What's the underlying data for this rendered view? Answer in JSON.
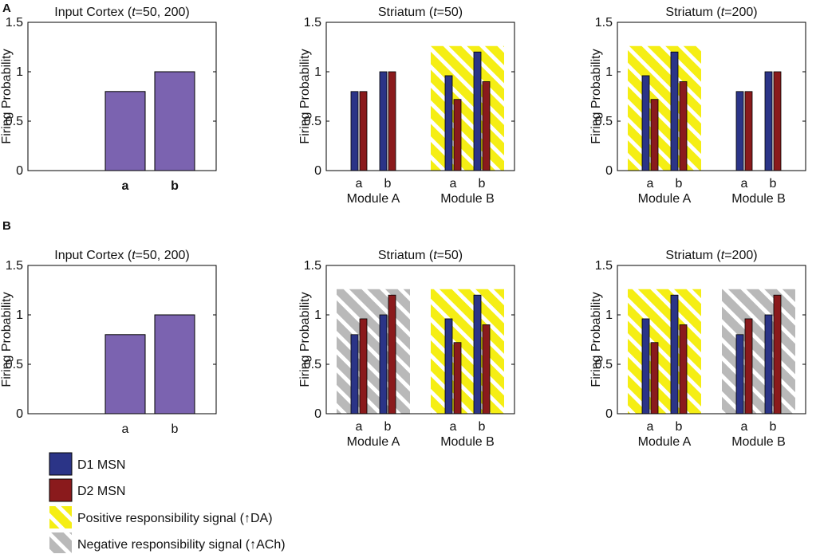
{
  "figure": {
    "panel_labels": [
      "A",
      "B"
    ],
    "legend": {
      "items": [
        {
          "label": "D1 MSN",
          "swatch": "d1"
        },
        {
          "label": "D2 MSN",
          "swatch": "d2"
        },
        {
          "label": "Positive responsibility signal (↑DA)",
          "swatch": "pos"
        },
        {
          "label": "Negative responsibility signal (↑ACh)",
          "swatch": "neg"
        }
      ]
    }
  },
  "colors": {
    "cortex": "#7b63b0",
    "d1": "#2b3487",
    "d2": "#8a1a1c",
    "positive": "#f5ee14",
    "negative": "#b9b9b9",
    "axis": "#000000"
  },
  "chart_data": [
    {
      "panel": "A",
      "type": "bar",
      "kind": "cortex",
      "title": "Input Cortex (t=50, 200)",
      "ylabel": "Firing Probability",
      "ylim": [
        0,
        1.5
      ],
      "yticks": [
        "0",
        "0.5",
        "1",
        "1.5"
      ],
      "categories": [
        "a",
        "b"
      ],
      "values": [
        0.8,
        1.0
      ]
    },
    {
      "panel": "A",
      "type": "bar",
      "kind": "striatum",
      "title": "Striatum (t=50)",
      "ylabel": "Firing Probability",
      "ylim": [
        0,
        1.5
      ],
      "yticks": [
        "0",
        "0.5",
        "1",
        "1.5"
      ],
      "modules": [
        {
          "name": "Module A",
          "categories": [
            "a",
            "b"
          ],
          "d1": [
            0.8,
            1.0
          ],
          "d2": [
            0.8,
            1.0
          ],
          "signal": "none"
        },
        {
          "name": "Module B",
          "categories": [
            "a",
            "b"
          ],
          "d1": [
            0.96,
            1.2
          ],
          "d2": [
            0.72,
            0.9
          ],
          "signal": "positive"
        }
      ]
    },
    {
      "panel": "A",
      "type": "bar",
      "kind": "striatum",
      "title": "Striatum (t=200)",
      "ylabel": "Firing Probability",
      "ylim": [
        0,
        1.5
      ],
      "yticks": [
        "0",
        "0.5",
        "1",
        "1.5"
      ],
      "modules": [
        {
          "name": "Module A",
          "categories": [
            "a",
            "b"
          ],
          "d1": [
            0.96,
            1.2
          ],
          "d2": [
            0.72,
            0.9
          ],
          "signal": "positive"
        },
        {
          "name": "Module B",
          "categories": [
            "a",
            "b"
          ],
          "d1": [
            0.8,
            1.0
          ],
          "d2": [
            0.8,
            1.0
          ],
          "signal": "none"
        }
      ]
    },
    {
      "panel": "B",
      "type": "bar",
      "kind": "cortex",
      "title": "Input Cortex (t=50, 200)",
      "ylabel": "Firing Probability",
      "ylim": [
        0,
        1.5
      ],
      "yticks": [
        "0",
        "0.5",
        "1",
        "1.5"
      ],
      "categories": [
        "a",
        "b"
      ],
      "values": [
        0.8,
        1.0
      ]
    },
    {
      "panel": "B",
      "type": "bar",
      "kind": "striatum",
      "title": "Striatum (t=50)",
      "ylabel": "Firing Probability",
      "ylim": [
        0,
        1.5
      ],
      "yticks": [
        "0",
        "0.5",
        "1",
        "1.5"
      ],
      "modules": [
        {
          "name": "Module A",
          "categories": [
            "a",
            "b"
          ],
          "d1": [
            0.8,
            1.0
          ],
          "d2": [
            0.96,
            1.2
          ],
          "signal": "negative"
        },
        {
          "name": "Module B",
          "categories": [
            "a",
            "b"
          ],
          "d1": [
            0.96,
            1.2
          ],
          "d2": [
            0.72,
            0.9
          ],
          "signal": "positive"
        }
      ]
    },
    {
      "panel": "B",
      "type": "bar",
      "kind": "striatum",
      "title": "Striatum (t=200)",
      "ylabel": "Firing Probability",
      "ylim": [
        0,
        1.5
      ],
      "yticks": [
        "0",
        "0.5",
        "1",
        "1.5"
      ],
      "modules": [
        {
          "name": "Module A",
          "categories": [
            "a",
            "b"
          ],
          "d1": [
            0.96,
            1.2
          ],
          "d2": [
            0.72,
            0.9
          ],
          "signal": "positive"
        },
        {
          "name": "Module B",
          "categories": [
            "a",
            "b"
          ],
          "d1": [
            0.8,
            1.0
          ],
          "d2": [
            0.96,
            1.2
          ],
          "signal": "negative"
        }
      ]
    }
  ]
}
